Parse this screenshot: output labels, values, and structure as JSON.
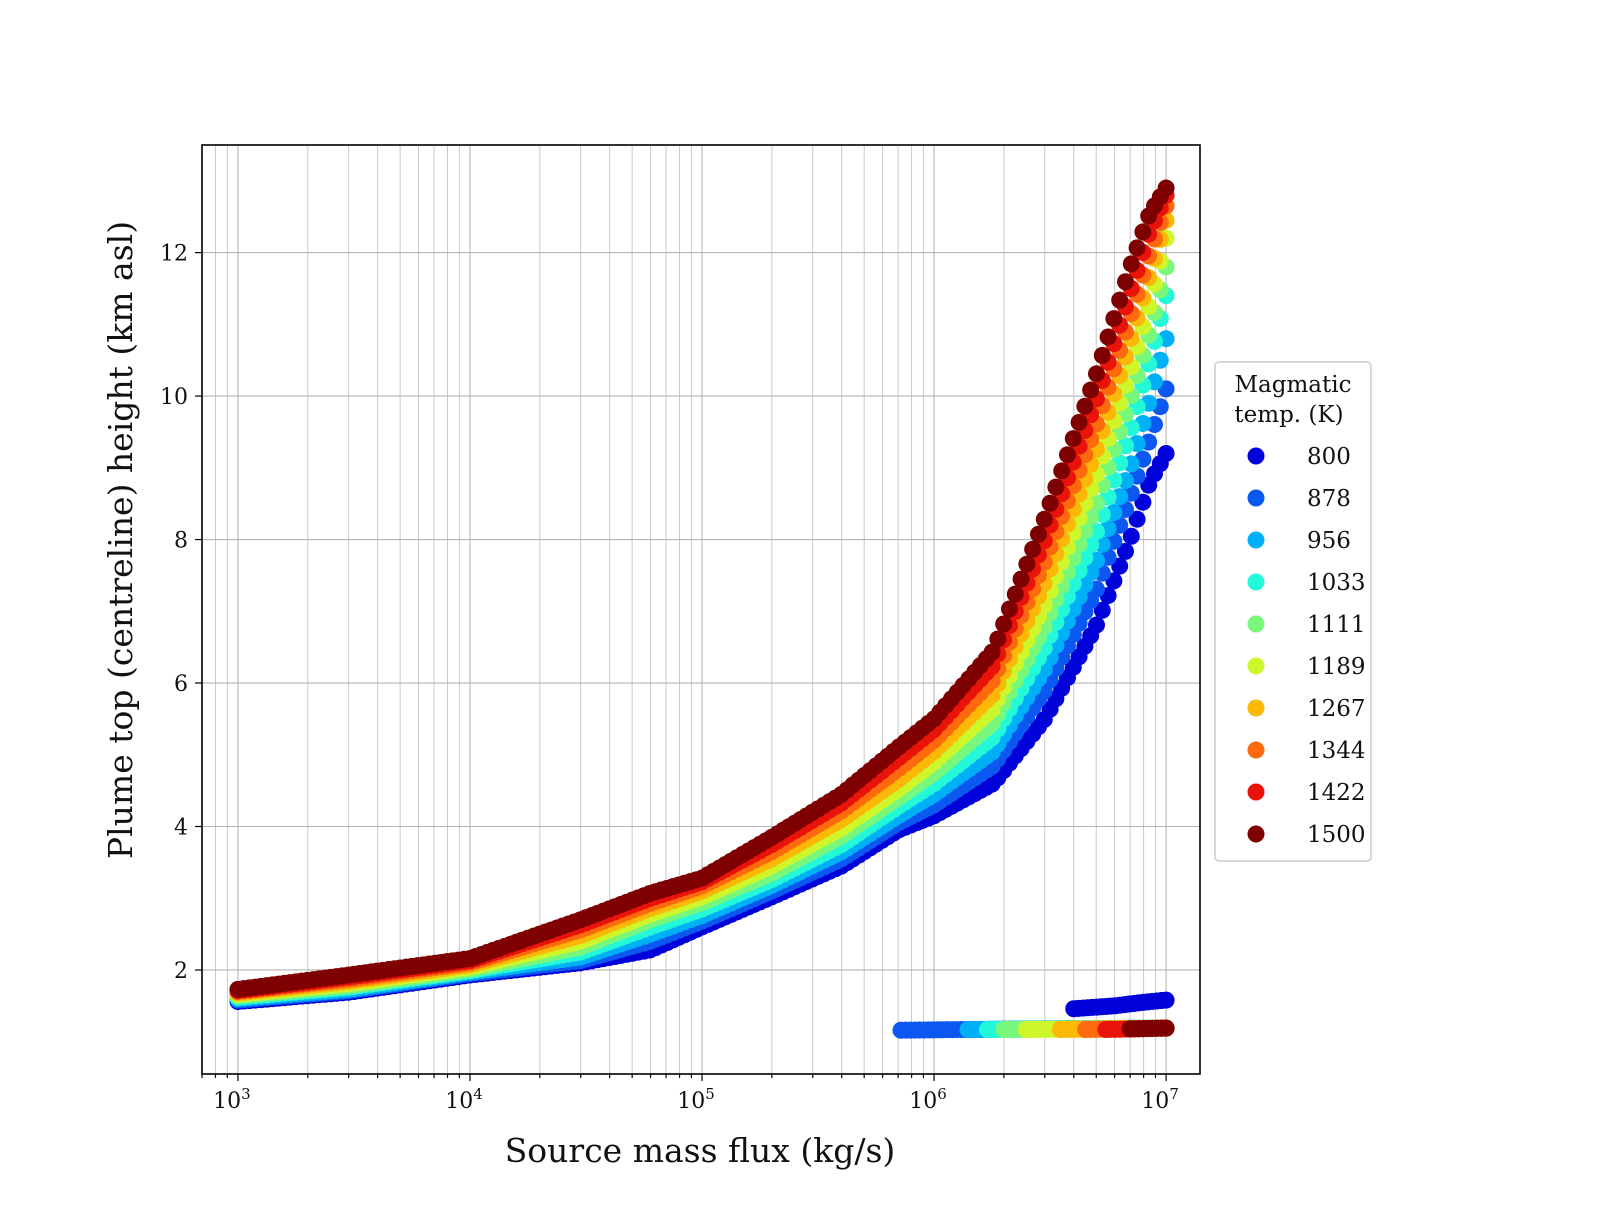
{
  "chart_data": {
    "type": "scatter",
    "title": "",
    "xlabel": "Source mass flux (kg/s)",
    "ylabel": "Plume top (centreline) height (km asl)",
    "xscale": "log",
    "xlim": [
      700,
      14000000
    ],
    "ylim": [
      0.55,
      13.5
    ],
    "grid": "both",
    "x_ticks": [
      {
        "base": "10",
        "exp": "3",
        "value": 1000
      },
      {
        "base": "10",
        "exp": "4",
        "value": 10000
      },
      {
        "base": "10",
        "exp": "5",
        "value": 100000
      },
      {
        "base": "10",
        "exp": "6",
        "value": 1000000
      },
      {
        "base": "10",
        "exp": "7",
        "value": 10000000
      }
    ],
    "y_ticks": [
      "2",
      "4",
      "6",
      "8",
      "10",
      "12"
    ],
    "legend": {
      "title_line1": "Magmatic",
      "title_line2": "temp. (K)",
      "placement": "right"
    },
    "series": [
      {
        "name": "800",
        "color": "#0000d8",
        "main": [
          [
            1000,
            1.56
          ],
          [
            3000,
            1.69
          ],
          [
            10000,
            1.93
          ],
          [
            30000,
            2.1
          ],
          [
            60000,
            2.28
          ],
          [
            100000,
            2.6
          ],
          [
            200000,
            3.02
          ],
          [
            400000,
            3.45
          ],
          [
            700000,
            3.95
          ],
          [
            1000000,
            4.15
          ],
          [
            1800000,
            4.6
          ],
          [
            3000000,
            5.5
          ],
          [
            5000000,
            6.8
          ],
          [
            7000000,
            8.0
          ],
          [
            8500000,
            8.8
          ],
          [
            10000000,
            9.2
          ]
        ],
        "lower": [
          [
            4000000,
            1.46
          ],
          [
            6000000,
            1.5
          ],
          [
            8000000,
            1.55
          ],
          [
            10000000,
            1.58
          ]
        ]
      },
      {
        "name": "878",
        "color": "#0a58f0",
        "main": [
          [
            1000,
            1.58
          ],
          [
            3000,
            1.71
          ],
          [
            10000,
            1.95
          ],
          [
            30000,
            2.13
          ],
          [
            60000,
            2.4
          ],
          [
            100000,
            2.68
          ],
          [
            200000,
            3.1
          ],
          [
            400000,
            3.55
          ],
          [
            700000,
            4.05
          ],
          [
            1000000,
            4.3
          ],
          [
            1800000,
            4.85
          ],
          [
            3000000,
            5.9
          ],
          [
            5000000,
            7.3
          ],
          [
            7000000,
            8.6
          ],
          [
            8500000,
            9.4
          ],
          [
            10000000,
            10.1
          ]
        ],
        "lower": [
          [
            720000,
            1.16
          ],
          [
            1300000,
            1.17
          ],
          [
            3000000,
            1.18
          ],
          [
            10000000,
            1.19
          ]
        ]
      },
      {
        "name": "956",
        "color": "#00b0f7",
        "main": [
          [
            1000,
            1.6
          ],
          [
            3000,
            1.73
          ],
          [
            10000,
            1.97
          ],
          [
            30000,
            2.18
          ],
          [
            60000,
            2.5
          ],
          [
            100000,
            2.76
          ],
          [
            200000,
            3.18
          ],
          [
            400000,
            3.65
          ],
          [
            700000,
            4.15
          ],
          [
            1000000,
            4.45
          ],
          [
            1800000,
            5.05
          ],
          [
            3000000,
            6.2
          ],
          [
            5000000,
            7.7
          ],
          [
            7000000,
            9.0
          ],
          [
            8500000,
            9.95
          ],
          [
            10000000,
            10.8
          ]
        ],
        "lower": [
          [
            1400000,
            1.17
          ],
          [
            3000000,
            1.18
          ],
          [
            10000000,
            1.19
          ]
        ]
      },
      {
        "name": "1033",
        "color": "#23f8d9",
        "main": [
          [
            1000,
            1.62
          ],
          [
            3000,
            1.76
          ],
          [
            10000,
            1.99
          ],
          [
            30000,
            2.25
          ],
          [
            60000,
            2.6
          ],
          [
            100000,
            2.85
          ],
          [
            200000,
            3.26
          ],
          [
            400000,
            3.75
          ],
          [
            700000,
            4.28
          ],
          [
            1000000,
            4.6
          ],
          [
            1800000,
            5.25
          ],
          [
            3000000,
            6.5
          ],
          [
            5000000,
            8.1
          ],
          [
            7000000,
            9.5
          ],
          [
            8500000,
            10.5
          ],
          [
            10000000,
            11.4
          ]
        ],
        "lower": [
          [
            1700000,
            1.17
          ],
          [
            4000000,
            1.18
          ],
          [
            10000000,
            1.19
          ]
        ]
      },
      {
        "name": "1111",
        "color": "#78f77d",
        "main": [
          [
            1000,
            1.64
          ],
          [
            3000,
            1.78
          ],
          [
            10000,
            2.01
          ],
          [
            30000,
            2.32
          ],
          [
            60000,
            2.7
          ],
          [
            100000,
            2.94
          ],
          [
            200000,
            3.35
          ],
          [
            400000,
            3.87
          ],
          [
            700000,
            4.4
          ],
          [
            1000000,
            4.75
          ],
          [
            1800000,
            5.45
          ],
          [
            3000000,
            6.8
          ],
          [
            5000000,
            8.5
          ],
          [
            7000000,
            9.95
          ],
          [
            8500000,
            10.9
          ],
          [
            10000000,
            11.8
          ]
        ],
        "lower": [
          [
            2000000,
            1.17
          ],
          [
            4500000,
            1.18
          ],
          [
            10000000,
            1.19
          ]
        ]
      },
      {
        "name": "1189",
        "color": "#cdf72a",
        "main": [
          [
            1000,
            1.66
          ],
          [
            3000,
            1.81
          ],
          [
            10000,
            2.04
          ],
          [
            30000,
            2.4
          ],
          [
            60000,
            2.78
          ],
          [
            100000,
            3.02
          ],
          [
            200000,
            3.45
          ],
          [
            400000,
            3.98
          ],
          [
            700000,
            4.52
          ],
          [
            1000000,
            4.9
          ],
          [
            1800000,
            5.65
          ],
          [
            3000000,
            7.1
          ],
          [
            5000000,
            8.9
          ],
          [
            7000000,
            10.35
          ],
          [
            8500000,
            11.3
          ],
          [
            10000000,
            12.2
          ]
        ],
        "lower": [
          [
            2500000,
            1.17
          ],
          [
            5000000,
            1.18
          ],
          [
            10000000,
            1.19
          ]
        ]
      },
      {
        "name": "1267",
        "color": "#fbb806",
        "main": [
          [
            1000,
            1.68
          ],
          [
            3000,
            1.84
          ],
          [
            10000,
            2.07
          ],
          [
            30000,
            2.48
          ],
          [
            60000,
            2.86
          ],
          [
            100000,
            3.1
          ],
          [
            200000,
            3.55
          ],
          [
            400000,
            4.1
          ],
          [
            700000,
            4.65
          ],
          [
            1000000,
            5.05
          ],
          [
            1800000,
            5.85
          ],
          [
            3000000,
            7.4
          ],
          [
            5000000,
            9.25
          ],
          [
            7000000,
            10.75
          ],
          [
            8500000,
            11.7
          ],
          [
            10000000,
            12.45
          ]
        ],
        "lower": [
          [
            3500000,
            1.17
          ],
          [
            6000000,
            1.18
          ],
          [
            10000000,
            1.19
          ]
        ]
      },
      {
        "name": "1344",
        "color": "#fc6a0d",
        "main": [
          [
            1000,
            1.7
          ],
          [
            3000,
            1.87
          ],
          [
            10000,
            2.1
          ],
          [
            30000,
            2.56
          ],
          [
            60000,
            2.93
          ],
          [
            100000,
            3.17
          ],
          [
            200000,
            3.65
          ],
          [
            400000,
            4.22
          ],
          [
            700000,
            4.8
          ],
          [
            1000000,
            5.2
          ],
          [
            1800000,
            6.05
          ],
          [
            3000000,
            7.7
          ],
          [
            5000000,
            9.6
          ],
          [
            7000000,
            11.1
          ],
          [
            8500000,
            12.0
          ],
          [
            10000000,
            12.65
          ]
        ],
        "lower": [
          [
            4500000,
            1.17
          ],
          [
            7000000,
            1.18
          ],
          [
            10000000,
            1.19
          ]
        ]
      },
      {
        "name": "1422",
        "color": "#e9130a",
        "main": [
          [
            1000,
            1.71
          ],
          [
            3000,
            1.9
          ],
          [
            10000,
            2.13
          ],
          [
            30000,
            2.63
          ],
          [
            60000,
            3.0
          ],
          [
            100000,
            3.23
          ],
          [
            200000,
            3.75
          ],
          [
            400000,
            4.33
          ],
          [
            700000,
            4.95
          ],
          [
            1000000,
            5.35
          ],
          [
            1800000,
            6.25
          ],
          [
            3000000,
            8.0
          ],
          [
            5000000,
            9.95
          ],
          [
            7000000,
            11.45
          ],
          [
            8500000,
            12.3
          ],
          [
            10000000,
            12.8
          ]
        ],
        "lower": [
          [
            5500000,
            1.17
          ],
          [
            8000000,
            1.18
          ],
          [
            10000000,
            1.19
          ]
        ]
      },
      {
        "name": "1500",
        "color": "#7f0000",
        "main": [
          [
            1000,
            1.73
          ],
          [
            3000,
            1.93
          ],
          [
            10000,
            2.16
          ],
          [
            30000,
            2.7
          ],
          [
            60000,
            3.07
          ],
          [
            100000,
            3.28
          ],
          [
            200000,
            3.85
          ],
          [
            400000,
            4.45
          ],
          [
            700000,
            5.1
          ],
          [
            1000000,
            5.5
          ],
          [
            1800000,
            6.45
          ],
          [
            3000000,
            8.3
          ],
          [
            5000000,
            10.3
          ],
          [
            7000000,
            11.8
          ],
          [
            8500000,
            12.55
          ],
          [
            10000000,
            12.9
          ]
        ],
        "lower": [
          [
            7000000,
            1.18
          ],
          [
            10000000,
            1.19
          ]
        ]
      }
    ]
  }
}
